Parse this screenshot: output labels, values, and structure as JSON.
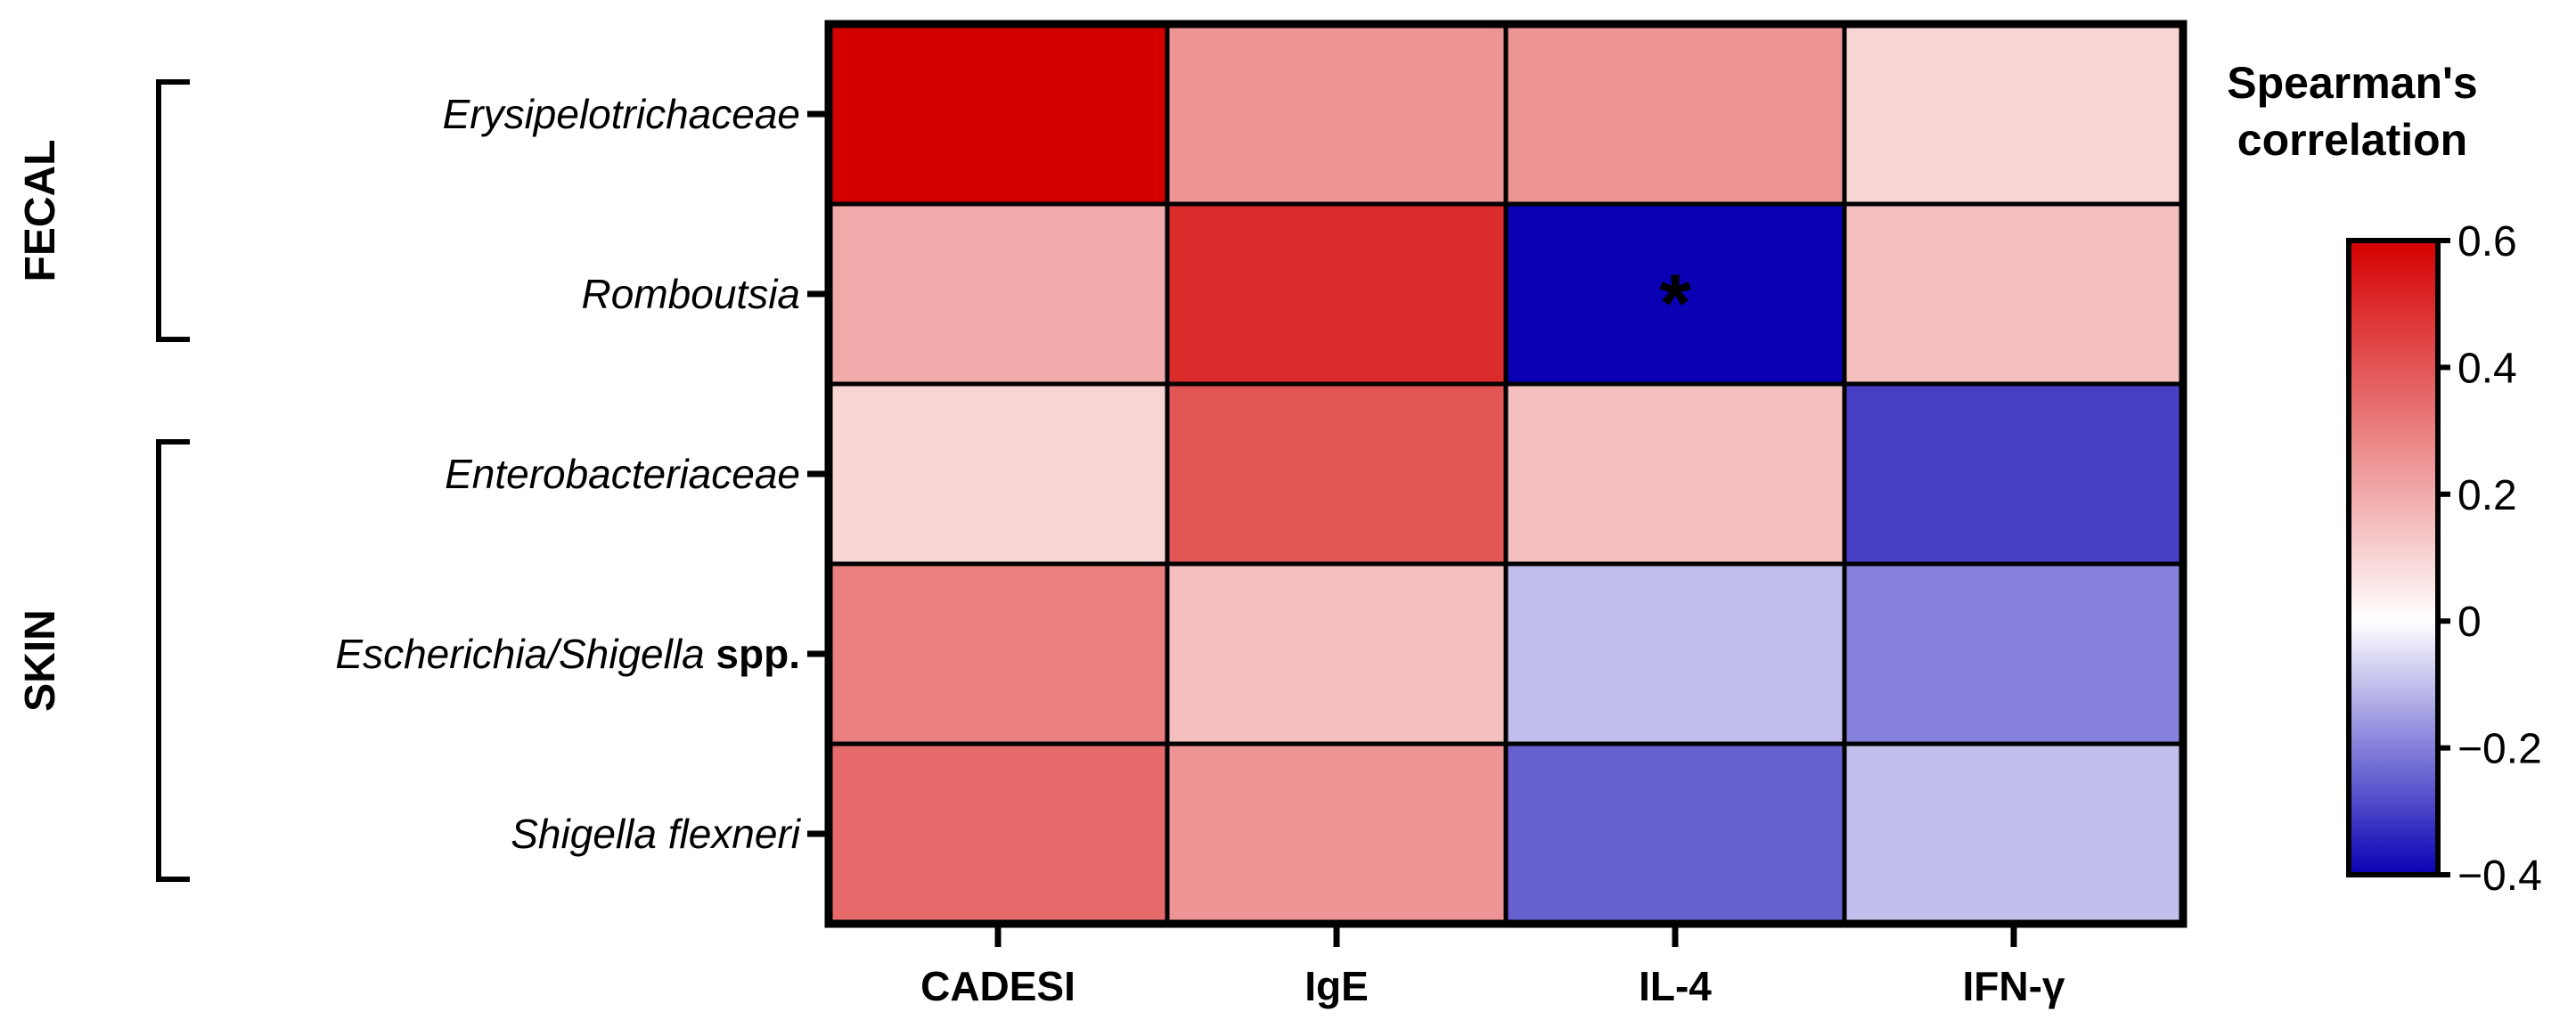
{
  "chart_data": {
    "type": "heatmap",
    "columns": [
      "CADESI",
      "IgE",
      "IL-4",
      "IFN-γ"
    ],
    "rows": [
      {
        "label": "Erysipelotrichaceae",
        "suffix": ""
      },
      {
        "label": "Romboutsia",
        "suffix": ""
      },
      {
        "label": "Enterobacteriaceae",
        "suffix": ""
      },
      {
        "label": "Escherichia/Shigella",
        "suffix": " spp."
      },
      {
        "label": "Shigella flexneri",
        "suffix": ""
      }
    ],
    "values": [
      [
        0.6,
        0.25,
        0.25,
        0.1
      ],
      [
        0.2,
        0.5,
        -0.4,
        0.15
      ],
      [
        0.1,
        0.4,
        0.15,
        -0.3
      ],
      [
        0.3,
        0.15,
        -0.1,
        -0.2
      ],
      [
        0.35,
        0.25,
        -0.25,
        -0.1
      ]
    ],
    "significance": [
      [
        "",
        "",
        "",
        ""
      ],
      [
        "",
        "",
        "*",
        ""
      ],
      [
        "",
        "",
        "",
        ""
      ],
      [
        "",
        "",
        "",
        ""
      ],
      [
        "",
        "",
        "",
        ""
      ]
    ],
    "groups": [
      {
        "label": "FECAL",
        "rows": [
          0,
          1
        ]
      },
      {
        "label": "SKIN",
        "rows": [
          2,
          4
        ]
      }
    ],
    "colorbar": {
      "title_lines": [
        "Spearman's",
        "correlation"
      ],
      "min": -0.4,
      "max": 0.6,
      "ticks": [
        0.6,
        0.4,
        0.2,
        0,
        -0.2,
        -0.4
      ],
      "tick_labels": [
        "0.6",
        "0.4",
        "0.2",
        "0",
        "−0.2",
        "−0.4"
      ],
      "colors": {
        "low": "#0a00b4",
        "mid": "#ffffff",
        "high": "#d40000"
      }
    }
  }
}
